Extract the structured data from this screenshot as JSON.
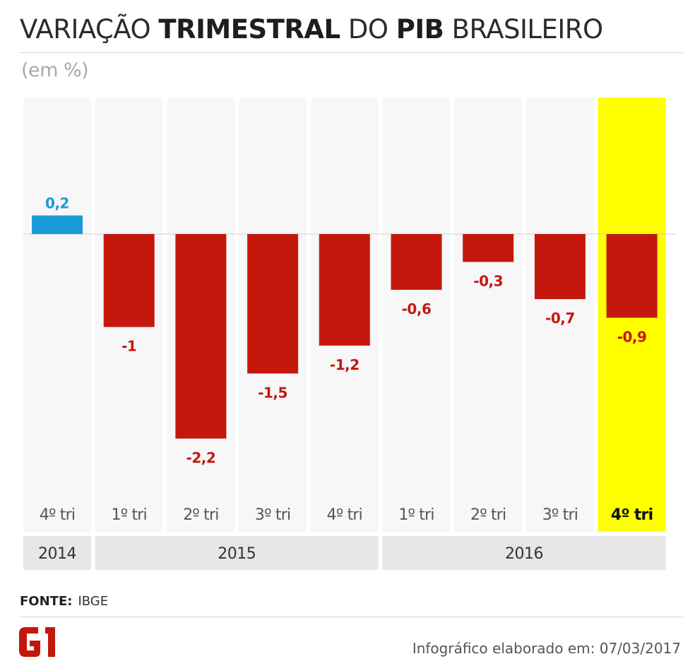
{
  "header": {
    "title_part1": "VARIAÇÃO ",
    "title_part2": "TRIMESTRAL",
    "title_part3": " DO ",
    "title_part4": "PIB",
    "title_part5": " BRASILEIRO",
    "subtitle": "(em %)"
  },
  "footer": {
    "source_label": "FONTE:",
    "source_value": "IBGE",
    "credit": "Infográfico elaborado em: 07/03/2017",
    "logo_text": "G1"
  },
  "colors": {
    "positive": "#1a9bd7",
    "negative": "#c4180d",
    "highlight": "#ffff00",
    "column_bg": "#f7f7f7",
    "year_bg": "#e6e6e6"
  },
  "chart_data": {
    "type": "bar",
    "title": "VARIAÇÃO TRIMESTRAL DO PIB BRASILEIRO",
    "ylabel": "(em %)",
    "categories": [
      "4º tri",
      "1º tri",
      "2º tri",
      "3º tri",
      "4º tri",
      "1º tri",
      "2º tri",
      "3º tri",
      "4º tri"
    ],
    "values": [
      0.2,
      -1,
      -2.2,
      -1.5,
      -1.2,
      -0.6,
      -0.3,
      -0.7,
      -0.9
    ],
    "value_labels": [
      "0,2",
      "-1",
      "-2,2",
      "-1,5",
      "-1,2",
      "-0,6",
      "-0,3",
      "-0,7",
      "-0,9"
    ],
    "highlight_index": 8,
    "years": [
      {
        "label": "2014",
        "start": 0,
        "end": 0
      },
      {
        "label": "2015",
        "start": 1,
        "end": 4
      },
      {
        "label": "2016",
        "start": 5,
        "end": 8
      }
    ],
    "ylim": [
      -2.2,
      0.2
    ]
  }
}
